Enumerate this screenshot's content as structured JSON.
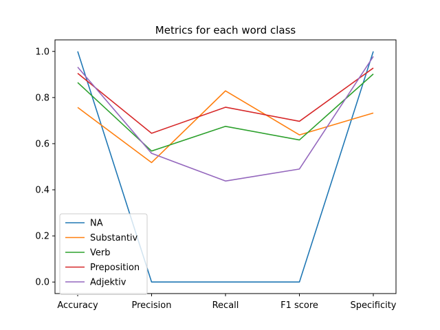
{
  "chart_data": {
    "type": "line",
    "title": "Metrics for each word class",
    "categories": [
      "Accuracy",
      "Precision",
      "Recall",
      "F1 score",
      "Specificity"
    ],
    "xlabel": "",
    "ylabel": "",
    "ylim": [
      -0.05,
      1.05
    ],
    "yticks": [
      "0.0",
      "0.2",
      "0.4",
      "0.6",
      "0.8",
      "1.0"
    ],
    "grid": false,
    "legend_position": "lower-left",
    "series": [
      {
        "name": "NA",
        "color": "#1f77b4",
        "values": [
          1.0,
          0.0,
          0.0,
          0.0,
          1.0
        ]
      },
      {
        "name": "Substantiv",
        "color": "#ff7f0e",
        "values": [
          0.757,
          0.518,
          0.829,
          0.638,
          0.733
        ]
      },
      {
        "name": "Verb",
        "color": "#2ca02c",
        "values": [
          0.865,
          0.568,
          0.675,
          0.616,
          0.902
        ]
      },
      {
        "name": "Preposition",
        "color": "#d62728",
        "values": [
          0.905,
          0.645,
          0.758,
          0.697,
          0.928
        ]
      },
      {
        "name": "Adjektiv",
        "color": "#9467bd",
        "values": [
          0.932,
          0.558,
          0.438,
          0.49,
          0.978
        ]
      }
    ]
  }
}
